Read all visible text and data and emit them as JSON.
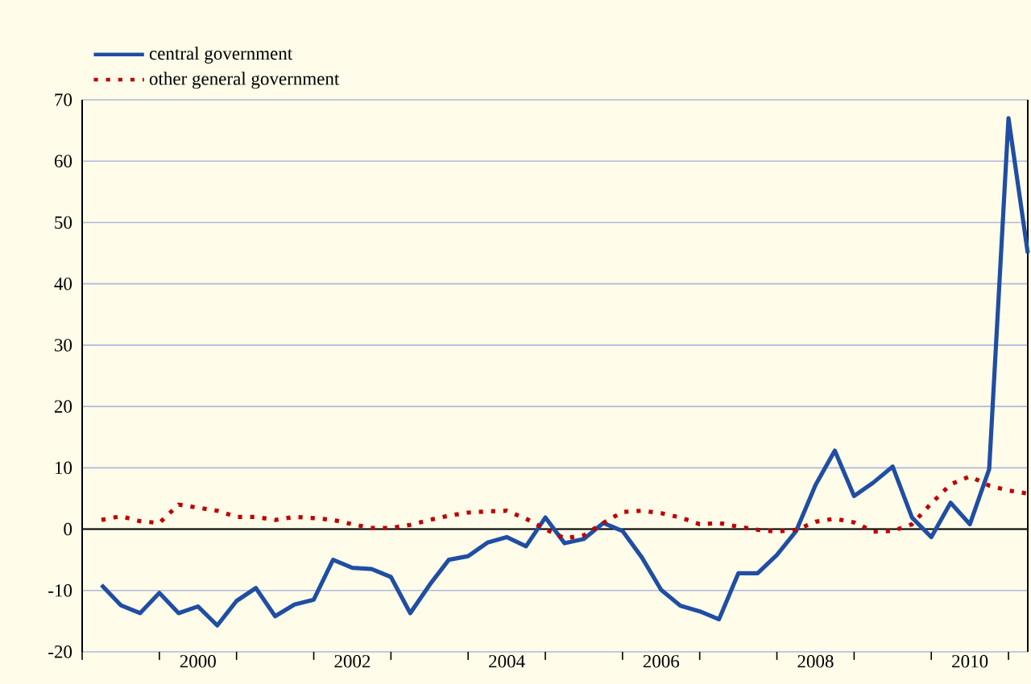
{
  "chart_data": {
    "type": "line",
    "x": [
      1999.25,
      1999.5,
      1999.75,
      2000,
      2000.25,
      2000.5,
      2000.75,
      2001,
      2001.25,
      2001.5,
      2001.75,
      2002,
      2002.25,
      2002.5,
      2002.75,
      2003,
      2003.25,
      2003.5,
      2003.75,
      2004,
      2004.25,
      2004.5,
      2004.75,
      2005,
      2005.25,
      2005.5,
      2005.75,
      2006,
      2006.25,
      2006.5,
      2006.75,
      2007,
      2007.25,
      2007.5,
      2007.75,
      2008,
      2008.25,
      2008.5,
      2008.75,
      2009,
      2009.25,
      2009.5,
      2009.75,
      2010,
      2010.25,
      2010.5,
      2010.75,
      2011,
      2011.25
    ],
    "series": [
      {
        "name": "central government",
        "color": "#1f4ea3",
        "line_style": "solid",
        "values": [
          -9.1,
          -12.4,
          -13.7,
          -10.4,
          -13.7,
          -12.6,
          -15.7,
          -11.7,
          -9.6,
          -14.2,
          -12.3,
          -11.5,
          -5.0,
          -6.3,
          -6.5,
          -7.8,
          -13.7,
          -9.1,
          -5.0,
          -4.4,
          -2.2,
          -1.3,
          -2.8,
          1.9,
          -2.3,
          -1.6,
          1.0,
          -0.3,
          -4.6,
          -9.9,
          -12.5,
          -13.4,
          -14.7,
          -7.2,
          -7.2,
          -4.2,
          -0.3,
          7.2,
          12.8,
          5.4,
          7.6,
          10.2,
          1.9,
          -1.3,
          4.3,
          0.8,
          9.8,
          67,
          45
        ]
      },
      {
        "name": "other general government",
        "color": "#c00000",
        "line_style": "dotted",
        "values": [
          1.5,
          2.1,
          1.3,
          1.0,
          4.0,
          3.5,
          3.0,
          2.0,
          2.0,
          1.5,
          2.0,
          1.8,
          1.5,
          0.8,
          0.2,
          0.2,
          0.7,
          1.5,
          2.2,
          2.7,
          2.9,
          3.0,
          1.7,
          0,
          -1.5,
          -1.0,
          1.0,
          2.8,
          3.0,
          2.6,
          1.9,
          0.8,
          1.0,
          0.4,
          -0.1,
          -0.4,
          -0.1,
          1.2,
          1.7,
          1.1,
          -0.4,
          -0.3,
          0.8,
          4.2,
          7.3,
          8.6,
          7.1,
          6.3,
          5.8
        ]
      }
    ],
    "xlim": [
      1999,
      2011.25
    ],
    "xticks": [
      {
        "value": 1999,
        "label": null
      },
      {
        "value": 2000,
        "label": null
      },
      {
        "value": 2000.5,
        "label": "2000"
      },
      {
        "value": 2001,
        "label": null
      },
      {
        "value": 2002,
        "label": null
      },
      {
        "value": 2002.5,
        "label": "2002"
      },
      {
        "value": 2003,
        "label": null
      },
      {
        "value": 2004,
        "label": null
      },
      {
        "value": 2004.5,
        "label": "2004"
      },
      {
        "value": 2005,
        "label": null
      },
      {
        "value": 2006,
        "label": null
      },
      {
        "value": 2006.5,
        "label": "2006"
      },
      {
        "value": 2007,
        "label": null
      },
      {
        "value": 2008,
        "label": null
      },
      {
        "value": 2008.5,
        "label": "2008"
      },
      {
        "value": 2009,
        "label": null
      },
      {
        "value": 2010,
        "label": null
      },
      {
        "value": 2010.5,
        "label": "2010"
      },
      {
        "value": 2011,
        "label": null
      }
    ],
    "ylim": [
      -20,
      70
    ],
    "yticks": [
      -20,
      -10,
      0,
      10,
      20,
      30,
      40,
      50,
      60,
      70
    ],
    "grid": "y",
    "legend": "top left",
    "ref_lines": [
      {
        "axis": "y",
        "value": 0,
        "color": "#000000"
      }
    ]
  }
}
